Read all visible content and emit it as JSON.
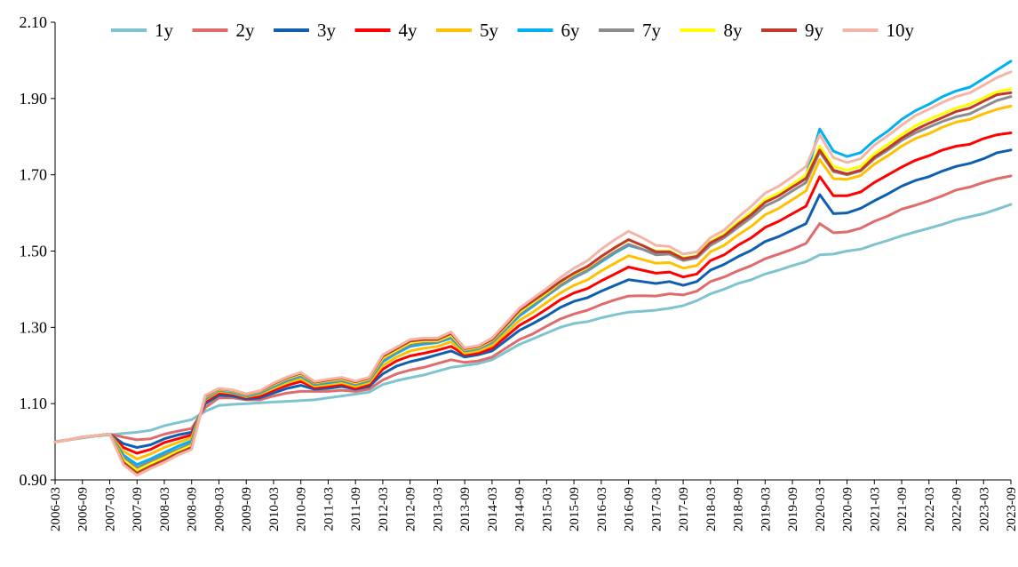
{
  "chart_data": {
    "type": "line",
    "ylim": [
      0.9,
      2.1
    ],
    "y_ticks": [
      "0.90",
      "1.10",
      "1.30",
      "1.50",
      "1.70",
      "1.90",
      "2.10"
    ],
    "x_tick_labels": [
      "2006-03",
      "2006-09",
      "2007-03",
      "2007-09",
      "2008-03",
      "2008-09",
      "2009-03",
      "2009-09",
      "2010-03",
      "2010-09",
      "2011-03",
      "2011-09",
      "2012-03",
      "2012-09",
      "2013-03",
      "2013-09",
      "2014-03",
      "2014-09",
      "2015-03",
      "2015-09",
      "2016-03",
      "2016-09",
      "2017-03",
      "2017-09",
      "2018-03",
      "2018-09",
      "2019-03",
      "2019-09",
      "2020-03",
      "2020-09",
      "2021-03",
      "2021-09",
      "2022-03",
      "2022-09",
      "2023-03",
      "2023-09"
    ],
    "x": [
      "2006-03",
      "2006-06",
      "2006-09",
      "2006-12",
      "2007-03",
      "2007-06",
      "2007-09",
      "2007-12",
      "2008-03",
      "2008-06",
      "2008-09",
      "2008-12",
      "2009-03",
      "2009-06",
      "2009-09",
      "2009-12",
      "2010-03",
      "2010-06",
      "2010-09",
      "2010-12",
      "2011-03",
      "2011-06",
      "2011-09",
      "2011-12",
      "2012-03",
      "2012-06",
      "2012-09",
      "2012-12",
      "2013-03",
      "2013-06",
      "2013-09",
      "2013-12",
      "2014-03",
      "2014-06",
      "2014-09",
      "2014-12",
      "2015-03",
      "2015-06",
      "2015-09",
      "2015-12",
      "2016-03",
      "2016-06",
      "2016-09",
      "2016-12",
      "2017-03",
      "2017-06",
      "2017-09",
      "2017-12",
      "2018-03",
      "2018-06",
      "2018-09",
      "2018-12",
      "2019-03",
      "2019-06",
      "2019-09",
      "2019-12",
      "2020-03",
      "2020-06",
      "2020-09",
      "2020-12",
      "2021-03",
      "2021-06",
      "2021-09",
      "2021-12",
      "2022-03",
      "2022-06",
      "2022-09",
      "2022-12",
      "2023-03",
      "2023-06",
      "2023-09"
    ],
    "grid": false,
    "legend_position": "top",
    "series": [
      {
        "name": "1y",
        "color": "#7EC4CF",
        "values": [
          1.0,
          1.005,
          1.01,
          1.015,
          1.018,
          1.022,
          1.025,
          1.03,
          1.042,
          1.05,
          1.058,
          1.08,
          1.095,
          1.098,
          1.1,
          1.102,
          1.104,
          1.106,
          1.108,
          1.11,
          1.115,
          1.12,
          1.125,
          1.13,
          1.15,
          1.16,
          1.168,
          1.175,
          1.185,
          1.195,
          1.2,
          1.205,
          1.215,
          1.235,
          1.255,
          1.27,
          1.285,
          1.3,
          1.31,
          1.315,
          1.325,
          1.333,
          1.34,
          1.342,
          1.345,
          1.35,
          1.357,
          1.37,
          1.388,
          1.4,
          1.415,
          1.425,
          1.44,
          1.45,
          1.462,
          1.472,
          1.49,
          1.492,
          1.5,
          1.505,
          1.517,
          1.528,
          1.54,
          1.55,
          1.56,
          1.57,
          1.582,
          1.59,
          1.598,
          1.61,
          1.622
        ]
      },
      {
        "name": "2y",
        "color": "#E06B6B",
        "values": [
          1.0,
          1.005,
          1.012,
          1.016,
          1.02,
          1.012,
          1.005,
          1.008,
          1.02,
          1.028,
          1.035,
          1.09,
          1.115,
          1.115,
          1.11,
          1.11,
          1.12,
          1.128,
          1.132,
          1.132,
          1.132,
          1.135,
          1.132,
          1.138,
          1.162,
          1.178,
          1.188,
          1.195,
          1.205,
          1.215,
          1.208,
          1.212,
          1.222,
          1.245,
          1.268,
          1.283,
          1.303,
          1.322,
          1.335,
          1.345,
          1.36,
          1.372,
          1.382,
          1.383,
          1.382,
          1.388,
          1.385,
          1.395,
          1.42,
          1.432,
          1.448,
          1.462,
          1.48,
          1.492,
          1.505,
          1.52,
          1.572,
          1.548,
          1.55,
          1.56,
          1.578,
          1.592,
          1.61,
          1.62,
          1.632,
          1.645,
          1.66,
          1.668,
          1.68,
          1.69,
          1.697
        ]
      },
      {
        "name": "3y",
        "color": "#0F5FB0",
        "values": [
          1.0,
          1.005,
          1.012,
          1.016,
          1.02,
          0.995,
          0.985,
          0.992,
          1.008,
          1.018,
          1.025,
          1.1,
          1.122,
          1.12,
          1.112,
          1.115,
          1.128,
          1.14,
          1.148,
          1.138,
          1.14,
          1.145,
          1.138,
          1.145,
          1.178,
          1.198,
          1.21,
          1.218,
          1.228,
          1.238,
          1.222,
          1.228,
          1.238,
          1.265,
          1.292,
          1.31,
          1.33,
          1.352,
          1.368,
          1.378,
          1.395,
          1.41,
          1.425,
          1.42,
          1.415,
          1.42,
          1.41,
          1.42,
          1.45,
          1.465,
          1.485,
          1.502,
          1.525,
          1.538,
          1.555,
          1.572,
          1.648,
          1.598,
          1.6,
          1.612,
          1.632,
          1.65,
          1.67,
          1.685,
          1.695,
          1.71,
          1.722,
          1.73,
          1.742,
          1.758,
          1.765
        ]
      },
      {
        "name": "4y",
        "color": "#FF0000",
        "values": [
          1.0,
          1.005,
          1.012,
          1.016,
          1.02,
          0.985,
          0.97,
          0.98,
          0.998,
          1.008,
          1.018,
          1.105,
          1.128,
          1.125,
          1.115,
          1.12,
          1.135,
          1.148,
          1.158,
          1.142,
          1.145,
          1.15,
          1.14,
          1.15,
          1.19,
          1.212,
          1.225,
          1.232,
          1.24,
          1.25,
          1.228,
          1.232,
          1.245,
          1.275,
          1.305,
          1.325,
          1.348,
          1.372,
          1.39,
          1.402,
          1.422,
          1.44,
          1.458,
          1.45,
          1.442,
          1.445,
          1.432,
          1.44,
          1.475,
          1.49,
          1.515,
          1.535,
          1.562,
          1.578,
          1.598,
          1.618,
          1.695,
          1.645,
          1.645,
          1.655,
          1.68,
          1.7,
          1.72,
          1.738,
          1.75,
          1.765,
          1.775,
          1.78,
          1.795,
          1.805,
          1.81
        ]
      },
      {
        "name": "5y",
        "color": "#FFC000",
        "values": [
          1.0,
          1.005,
          1.012,
          1.016,
          1.02,
          0.975,
          0.955,
          0.968,
          0.985,
          0.998,
          1.01,
          1.11,
          1.132,
          1.128,
          1.118,
          1.125,
          1.14,
          1.155,
          1.165,
          1.146,
          1.15,
          1.155,
          1.145,
          1.155,
          1.2,
          1.222,
          1.238,
          1.245,
          1.25,
          1.262,
          1.232,
          1.238,
          1.252,
          1.285,
          1.318,
          1.34,
          1.365,
          1.39,
          1.41,
          1.425,
          1.448,
          1.468,
          1.488,
          1.478,
          1.468,
          1.47,
          1.455,
          1.462,
          1.498,
          1.515,
          1.542,
          1.565,
          1.595,
          1.612,
          1.635,
          1.658,
          1.74,
          1.69,
          1.688,
          1.698,
          1.728,
          1.75,
          1.775,
          1.795,
          1.808,
          1.825,
          1.838,
          1.845,
          1.86,
          1.872,
          1.88
        ]
      },
      {
        "name": "6y",
        "color": "#00B0F0",
        "values": [
          1.0,
          1.005,
          1.012,
          1.016,
          1.02,
          0.965,
          0.94,
          0.955,
          0.972,
          0.988,
          1.002,
          1.112,
          1.135,
          1.13,
          1.12,
          1.128,
          1.145,
          1.16,
          1.172,
          1.15,
          1.155,
          1.16,
          1.15,
          1.16,
          1.21,
          1.232,
          1.25,
          1.256,
          1.26,
          1.272,
          1.238,
          1.244,
          1.26,
          1.295,
          1.33,
          1.355,
          1.382,
          1.408,
          1.43,
          1.448,
          1.472,
          1.495,
          1.515,
          1.505,
          1.492,
          1.495,
          1.478,
          1.485,
          1.522,
          1.542,
          1.572,
          1.598,
          1.63,
          1.648,
          1.672,
          1.698,
          1.82,
          1.762,
          1.748,
          1.758,
          1.79,
          1.815,
          1.845,
          1.868,
          1.885,
          1.905,
          1.92,
          1.93,
          1.952,
          1.975,
          1.998
        ]
      },
      {
        "name": "7y",
        "color": "#8C8C8C",
        "values": [
          1.0,
          1.005,
          1.012,
          1.016,
          1.02,
          0.958,
          0.932,
          0.948,
          0.965,
          0.98,
          0.995,
          1.115,
          1.136,
          1.132,
          1.122,
          1.13,
          1.148,
          1.163,
          1.175,
          1.152,
          1.158,
          1.162,
          1.152,
          1.162,
          1.215,
          1.236,
          1.255,
          1.26,
          1.262,
          1.276,
          1.24,
          1.246,
          1.262,
          1.298,
          1.335,
          1.36,
          1.385,
          1.41,
          1.432,
          1.45,
          1.475,
          1.498,
          1.518,
          1.505,
          1.49,
          1.492,
          1.475,
          1.482,
          1.515,
          1.535,
          1.562,
          1.588,
          1.618,
          1.635,
          1.658,
          1.68,
          1.76,
          1.708,
          1.7,
          1.71,
          1.742,
          1.765,
          1.79,
          1.81,
          1.825,
          1.84,
          1.852,
          1.86,
          1.878,
          1.895,
          1.905
        ]
      },
      {
        "name": "8y",
        "color": "#FFFF00",
        "values": [
          1.0,
          1.005,
          1.012,
          1.016,
          1.02,
          0.952,
          0.925,
          0.942,
          0.958,
          0.975,
          0.99,
          1.118,
          1.138,
          1.134,
          1.124,
          1.132,
          1.15,
          1.166,
          1.178,
          1.155,
          1.16,
          1.165,
          1.155,
          1.165,
          1.22,
          1.24,
          1.26,
          1.265,
          1.265,
          1.28,
          1.242,
          1.248,
          1.266,
          1.302,
          1.34,
          1.365,
          1.39,
          1.418,
          1.44,
          1.458,
          1.485,
          1.508,
          1.53,
          1.515,
          1.5,
          1.5,
          1.482,
          1.488,
          1.525,
          1.545,
          1.575,
          1.602,
          1.635,
          1.652,
          1.675,
          1.7,
          1.775,
          1.722,
          1.712,
          1.722,
          1.755,
          1.78,
          1.805,
          1.828,
          1.845,
          1.86,
          1.875,
          1.885,
          1.902,
          1.918,
          1.925
        ]
      },
      {
        "name": "9y",
        "color": "#C0392B",
        "values": [
          1.0,
          1.005,
          1.012,
          1.016,
          1.02,
          0.946,
          0.918,
          0.936,
          0.952,
          0.97,
          0.985,
          1.12,
          1.139,
          1.135,
          1.125,
          1.133,
          1.152,
          1.168,
          1.18,
          1.156,
          1.162,
          1.167,
          1.157,
          1.167,
          1.224,
          1.244,
          1.264,
          1.268,
          1.268,
          1.284,
          1.244,
          1.25,
          1.268,
          1.305,
          1.344,
          1.369,
          1.394,
          1.42,
          1.442,
          1.46,
          1.486,
          1.509,
          1.53,
          1.515,
          1.498,
          1.498,
          1.48,
          1.486,
          1.522,
          1.54,
          1.57,
          1.596,
          1.628,
          1.645,
          1.668,
          1.69,
          1.765,
          1.712,
          1.702,
          1.712,
          1.746,
          1.77,
          1.796,
          1.818,
          1.835,
          1.85,
          1.866,
          1.875,
          1.893,
          1.91,
          1.915
        ]
      },
      {
        "name": "10y",
        "color": "#F2B5A8",
        "values": [
          1.0,
          1.005,
          1.012,
          1.016,
          1.02,
          0.94,
          0.912,
          0.93,
          0.946,
          0.965,
          0.98,
          1.122,
          1.14,
          1.136,
          1.126,
          1.134,
          1.154,
          1.17,
          1.182,
          1.158,
          1.164,
          1.169,
          1.159,
          1.169,
          1.228,
          1.248,
          1.268,
          1.272,
          1.272,
          1.288,
          1.246,
          1.252,
          1.272,
          1.31,
          1.35,
          1.376,
          1.402,
          1.43,
          1.455,
          1.475,
          1.505,
          1.53,
          1.552,
          1.535,
          1.515,
          1.512,
          1.492,
          1.498,
          1.535,
          1.555,
          1.588,
          1.618,
          1.652,
          1.67,
          1.695,
          1.722,
          1.805,
          1.745,
          1.732,
          1.742,
          1.778,
          1.803,
          1.83,
          1.855,
          1.872,
          1.89,
          1.905,
          1.915,
          1.935,
          1.955,
          1.97
        ]
      }
    ]
  }
}
